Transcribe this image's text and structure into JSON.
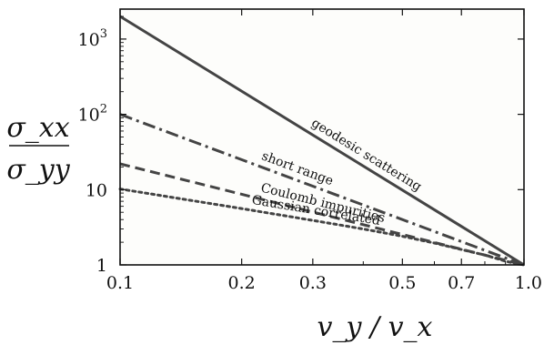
{
  "chart_data": {
    "type": "line",
    "x_scale": "log",
    "y_scale": "log",
    "xlim": [
      0.1,
      1.0
    ],
    "ylim": [
      1,
      2500
    ],
    "grid": false,
    "plot_background": "#fdfdfb",
    "xlabel": "v_y / v_x",
    "ylabel_numerator": "σ_xx",
    "ylabel_denominator": "σ_yy",
    "x_ticks": [
      {
        "value": 0.1,
        "label": "0.1"
      },
      {
        "value": 0.2,
        "label": "0.2"
      },
      {
        "value": 0.3,
        "label": "0.3"
      },
      {
        "value": 0.5,
        "label": "0.5"
      },
      {
        "value": 0.7,
        "label": "0.7"
      },
      {
        "value": 1.0,
        "label": "1.0"
      }
    ],
    "y_ticks": [
      {
        "value": 1,
        "label": "1"
      },
      {
        "value": 10,
        "label": "10"
      },
      {
        "value": 100,
        "label": "10",
        "sup": "2"
      },
      {
        "value": 1000,
        "label": "10",
        "sup": "3"
      }
    ],
    "series": [
      {
        "name": "geodesic scattering",
        "style": "solid",
        "color": "#444444",
        "x": [
          0.1,
          1.0
        ],
        "y": [
          2000,
          1
        ]
      },
      {
        "name": "short range",
        "style": "dashdot",
        "color": "#444444",
        "x": [
          0.1,
          1.0
        ],
        "y": [
          100,
          1
        ]
      },
      {
        "name": "Coulomb impurities",
        "style": "dashed",
        "color": "#444444",
        "x": [
          0.1,
          1.0
        ],
        "y": [
          22,
          1
        ]
      },
      {
        "name": "Gaussian correlated",
        "style": "dotted",
        "color": "#444444",
        "x": [
          0.1,
          0.2,
          0.3,
          0.4,
          0.5,
          0.6,
          0.7,
          0.8,
          0.9,
          0.95,
          1.0
        ],
        "y": [
          10.2,
          5.6,
          3.9,
          3.0,
          2.4,
          1.95,
          1.6,
          1.35,
          1.12,
          1.05,
          1
        ]
      }
    ]
  }
}
